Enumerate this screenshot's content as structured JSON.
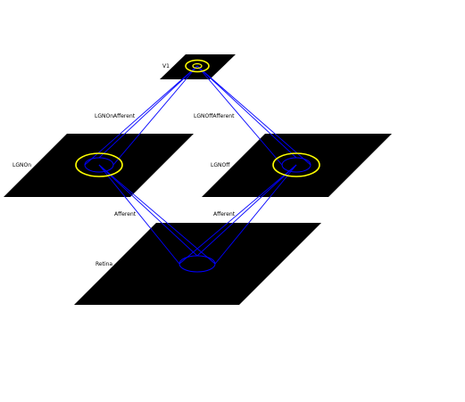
{
  "colors": {
    "background": "#ffffff",
    "sheet": "#000000",
    "connection": "#0000ff",
    "receptive_field": "#ffff00",
    "label": "#000000"
  },
  "sheets": {
    "v1": {
      "label": "V1"
    },
    "lgn_on": {
      "label": "LGNOn"
    },
    "lgn_off": {
      "label": "LGNOff"
    },
    "retina": {
      "label": "Retina"
    }
  },
  "projections": {
    "lgn_on_afferent": {
      "label": "LGNOnAfferent"
    },
    "lgn_off_afferent": {
      "label": "LGNOffAfferent"
    },
    "on_afferent": {
      "label": "Afferent"
    },
    "off_afferent": {
      "label": "Afferent"
    }
  }
}
